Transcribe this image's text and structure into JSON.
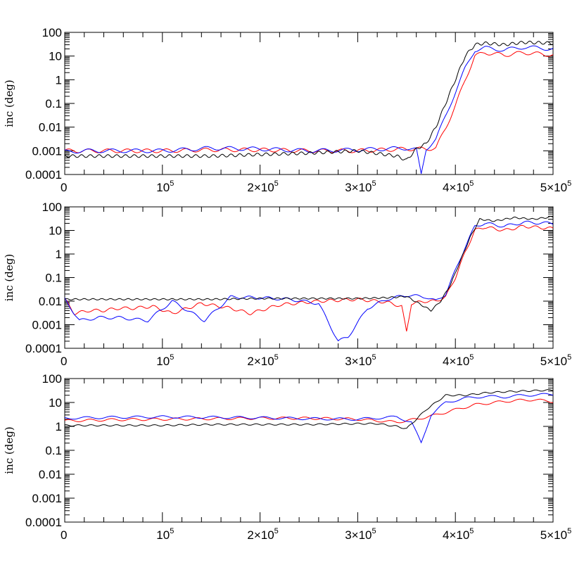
{
  "chart_data": [
    {
      "type": "line",
      "title": "",
      "xlabel": "",
      "ylabel": "inc (deg)",
      "y_scale": "log",
      "xlim": [
        0,
        500000
      ],
      "ylim": [
        0.0001,
        100
      ],
      "grid": false,
      "x_tick_labels": [
        "0",
        "10⁵",
        "2×10⁵",
        "3×10⁵",
        "4×10⁵",
        "5×10⁵"
      ],
      "y_tick_labels": [
        "0.0001",
        "0.001",
        "0.01",
        "0.1",
        "1",
        "10",
        "100"
      ],
      "series": [
        {
          "color": "#ff0000",
          "x": [
            0,
            20000,
            50000,
            100000,
            150000,
            200000,
            250000,
            300000,
            350000,
            370000,
            380000,
            390000,
            400000,
            410000,
            420000,
            430000,
            450000,
            470000,
            500000
          ],
          "y": [
            0.001,
            0.001,
            0.001,
            0.001,
            0.0011,
            0.0011,
            0.001,
            0.001,
            0.0012,
            0.0012,
            0.0013,
            0.009,
            0.08,
            1.0,
            10,
            14,
            11,
            14,
            11
          ]
        },
        {
          "color": "#0000ff",
          "x": [
            0,
            20000,
            50000,
            100000,
            150000,
            200000,
            250000,
            300000,
            350000,
            360000,
            365000,
            370000,
            380000,
            390000,
            400000,
            410000,
            420000,
            430000,
            450000,
            470000,
            500000
          ],
          "y": [
            0.0009,
            0.001,
            0.001,
            0.001,
            0.0013,
            0.0012,
            0.001,
            0.0011,
            0.0013,
            0.0011,
            0.0001,
            0.0012,
            0.003,
            0.03,
            0.3,
            3,
            18,
            22,
            18,
            24,
            20
          ]
        },
        {
          "color": "#000000",
          "x": [
            0,
            20000,
            50000,
            100000,
            150000,
            200000,
            250000,
            300000,
            340000,
            350000,
            360000,
            370000,
            380000,
            390000,
            400000,
            410000,
            420000,
            430000,
            450000,
            470000,
            500000
          ],
          "y": [
            0.0006,
            0.0006,
            0.0006,
            0.0006,
            0.0006,
            0.0007,
            0.0008,
            0.001,
            0.0006,
            0.0004,
            0.0012,
            0.002,
            0.01,
            0.1,
            1,
            10,
            30,
            35,
            30,
            38,
            35
          ]
        }
      ]
    },
    {
      "type": "line",
      "title": "",
      "xlabel": "",
      "ylabel": "inc (deg)",
      "y_scale": "log",
      "xlim": [
        0,
        500000
      ],
      "ylim": [
        0.0001,
        100
      ],
      "grid": false,
      "x_tick_labels": [
        "0",
        "10⁵",
        "2×10⁵",
        "3×10⁵",
        "4×10⁵",
        "5×10⁵"
      ],
      "y_tick_labels": [
        "0.0001",
        "0.001",
        "0.01",
        "0.1",
        "1",
        "10",
        "100"
      ],
      "series": [
        {
          "color": "#ff0000",
          "x": [
            0,
            10000,
            25000,
            40000,
            55000,
            70000,
            90000,
            110000,
            140000,
            170000,
            190000,
            220000,
            260000,
            300000,
            330000,
            345000,
            350000,
            355000,
            370000,
            380000,
            390000,
            400000,
            410000,
            420000,
            430000,
            450000,
            470000,
            500000
          ],
          "y": [
            0.012,
            0.003,
            0.004,
            0.004,
            0.005,
            0.005,
            0.006,
            0.003,
            0.008,
            0.005,
            0.003,
            0.007,
            0.01,
            0.012,
            0.009,
            0.006,
            0.0005,
            0.008,
            0.01,
            0.01,
            0.015,
            0.1,
            1.2,
            10,
            14,
            10,
            15,
            12
          ]
        },
        {
          "color": "#0000ff",
          "x": [
            0,
            15000,
            35000,
            55000,
            85000,
            110000,
            143000,
            170000,
            200000,
            230000,
            260000,
            280000,
            290000,
            310000,
            330000,
            350000,
            370000,
            380000,
            390000,
            400000,
            410000,
            420000,
            430000,
            450000,
            470000,
            500000
          ],
          "y": [
            0.012,
            0.0015,
            0.002,
            0.002,
            0.0015,
            0.01,
            0.0015,
            0.015,
            0.014,
            0.012,
            0.008,
            0.0002,
            0.0003,
            0.005,
            0.012,
            0.018,
            0.015,
            0.01,
            0.02,
            0.2,
            2,
            15,
            20,
            15,
            22,
            20
          ]
        },
        {
          "color": "#000000",
          "x": [
            0,
            50000,
            100000,
            150000,
            200000,
            250000,
            300000,
            330000,
            350000,
            365000,
            375000,
            385000,
            395000,
            405000,
            415000,
            425000,
            440000,
            460000,
            480000,
            500000
          ],
          "y": [
            0.012,
            0.012,
            0.012,
            0.012,
            0.013,
            0.013,
            0.013,
            0.014,
            0.016,
            0.007,
            0.004,
            0.01,
            0.05,
            0.5,
            5,
            30,
            25,
            35,
            30,
            38
          ]
        }
      ]
    },
    {
      "type": "line",
      "title": "",
      "xlabel": "",
      "ylabel": "inc (deg)",
      "y_scale": "log",
      "xlim": [
        0,
        500000
      ],
      "ylim": [
        0.0001,
        100
      ],
      "grid": false,
      "x_tick_labels": [
        "0",
        "10⁵",
        "2×10⁵",
        "3×10⁵",
        "4×10⁵",
        "5×10⁵"
      ],
      "y_tick_labels": [
        "0.0001",
        "0.001",
        "0.01",
        "0.1",
        "1",
        "10",
        "100"
      ],
      "series": [
        {
          "color": "#ff0000",
          "x": [
            0,
            50000,
            100000,
            150000,
            200000,
            250000,
            300000,
            340000,
            360000,
            380000,
            400000,
            420000,
            440000,
            460000,
            480000,
            500000
          ],
          "y": [
            1.7,
            1.9,
            2.0,
            2.1,
            2.2,
            2.2,
            2.0,
            1.5,
            2.0,
            3.0,
            5.0,
            8.0,
            10,
            12,
            13,
            11
          ]
        },
        {
          "color": "#0000ff",
          "x": [
            0,
            50000,
            100000,
            150000,
            200000,
            250000,
            300000,
            340000,
            355000,
            365000,
            375000,
            390000,
            410000,
            430000,
            450000,
            470000,
            500000
          ],
          "y": [
            2.2,
            2.4,
            2.5,
            2.4,
            2.3,
            2.1,
            2.0,
            2.5,
            1.5,
            0.2,
            3.0,
            10,
            15,
            18,
            17,
            20,
            22
          ]
        },
        {
          "color": "#000000",
          "x": [
            0,
            50000,
            100000,
            150000,
            200000,
            250000,
            300000,
            320000,
            340000,
            350000,
            360000,
            370000,
            390000,
            410000,
            430000,
            450000,
            470000,
            500000
          ],
          "y": [
            1.1,
            1.1,
            1.1,
            1.2,
            1.2,
            1.2,
            1.3,
            1.3,
            1.0,
            0.8,
            2.0,
            5.0,
            20,
            20,
            25,
            28,
            30,
            33
          ]
        }
      ]
    }
  ]
}
